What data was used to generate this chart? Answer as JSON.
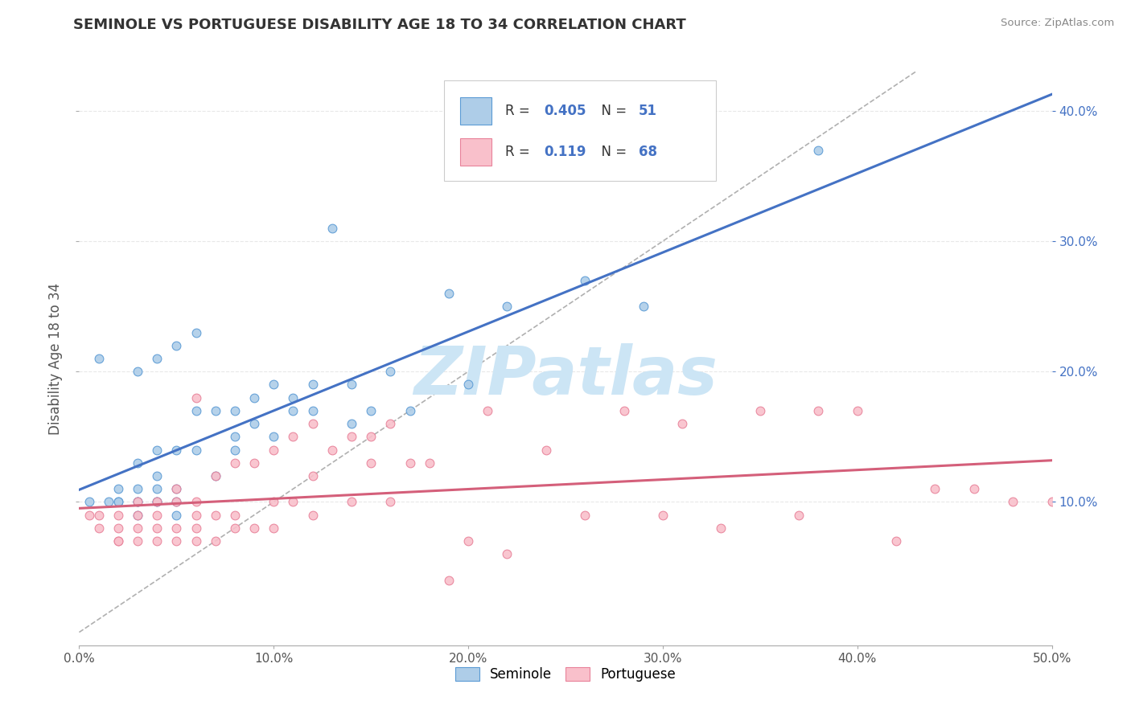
{
  "title": "SEMINOLE VS PORTUGUESE DISABILITY AGE 18 TO 34 CORRELATION CHART",
  "source": "Source: ZipAtlas.com",
  "ylabel": "Disability Age 18 to 34",
  "xlim": [
    0.0,
    0.5
  ],
  "ylim": [
    -0.01,
    0.43
  ],
  "xtick_labels": [
    "0.0%",
    "10.0%",
    "20.0%",
    "30.0%",
    "40.0%",
    "50.0%"
  ],
  "xtick_values": [
    0.0,
    0.1,
    0.2,
    0.3,
    0.4,
    0.5
  ],
  "ytick_labels_right": [
    "10.0%",
    "20.0%",
    "30.0%",
    "40.0%"
  ],
  "ytick_values_right": [
    0.1,
    0.2,
    0.3,
    0.4
  ],
  "seminole_R": 0.405,
  "seminole_N": 51,
  "portuguese_R": 0.119,
  "portuguese_N": 68,
  "seminole_color": "#aecde8",
  "portuguese_color": "#f9c0cb",
  "seminole_edge_color": "#5b9bd5",
  "portuguese_edge_color": "#e8829a",
  "seminole_line_color": "#4472c4",
  "portuguese_line_color": "#d45f7a",
  "diagonal_color": "#b0b0b0",
  "background_color": "#ffffff",
  "grid_color": "#e8e8e8",
  "watermark_text": "ZIPatlas",
  "watermark_color": "#cce5f5",
  "seminole_x": [
    0.005,
    0.01,
    0.015,
    0.02,
    0.02,
    0.02,
    0.03,
    0.03,
    0.03,
    0.03,
    0.03,
    0.03,
    0.04,
    0.04,
    0.04,
    0.04,
    0.04,
    0.04,
    0.05,
    0.05,
    0.05,
    0.05,
    0.05,
    0.06,
    0.06,
    0.06,
    0.07,
    0.07,
    0.08,
    0.08,
    0.08,
    0.09,
    0.09,
    0.1,
    0.1,
    0.11,
    0.11,
    0.12,
    0.12,
    0.13,
    0.14,
    0.14,
    0.15,
    0.16,
    0.17,
    0.19,
    0.2,
    0.22,
    0.26,
    0.29,
    0.38
  ],
  "seminole_y": [
    0.1,
    0.21,
    0.1,
    0.1,
    0.1,
    0.11,
    0.09,
    0.1,
    0.1,
    0.11,
    0.13,
    0.2,
    0.1,
    0.1,
    0.11,
    0.12,
    0.14,
    0.21,
    0.09,
    0.1,
    0.11,
    0.14,
    0.22,
    0.14,
    0.17,
    0.23,
    0.12,
    0.17,
    0.14,
    0.15,
    0.17,
    0.16,
    0.18,
    0.15,
    0.19,
    0.17,
    0.18,
    0.17,
    0.19,
    0.31,
    0.16,
    0.19,
    0.17,
    0.2,
    0.17,
    0.26,
    0.19,
    0.25,
    0.27,
    0.25,
    0.37
  ],
  "portuguese_x": [
    0.005,
    0.01,
    0.01,
    0.02,
    0.02,
    0.02,
    0.02,
    0.03,
    0.03,
    0.03,
    0.03,
    0.04,
    0.04,
    0.04,
    0.04,
    0.05,
    0.05,
    0.05,
    0.05,
    0.06,
    0.06,
    0.06,
    0.06,
    0.06,
    0.07,
    0.07,
    0.07,
    0.08,
    0.08,
    0.08,
    0.09,
    0.09,
    0.1,
    0.1,
    0.1,
    0.11,
    0.11,
    0.12,
    0.12,
    0.12,
    0.13,
    0.14,
    0.14,
    0.15,
    0.15,
    0.16,
    0.16,
    0.17,
    0.18,
    0.19,
    0.2,
    0.21,
    0.22,
    0.24,
    0.26,
    0.28,
    0.3,
    0.31,
    0.33,
    0.35,
    0.37,
    0.38,
    0.4,
    0.42,
    0.44,
    0.46,
    0.48,
    0.5
  ],
  "portuguese_y": [
    0.09,
    0.08,
    0.09,
    0.07,
    0.07,
    0.08,
    0.09,
    0.07,
    0.08,
    0.09,
    0.1,
    0.07,
    0.08,
    0.09,
    0.1,
    0.07,
    0.08,
    0.1,
    0.11,
    0.07,
    0.08,
    0.09,
    0.1,
    0.18,
    0.07,
    0.09,
    0.12,
    0.08,
    0.09,
    0.13,
    0.08,
    0.13,
    0.08,
    0.1,
    0.14,
    0.1,
    0.15,
    0.09,
    0.12,
    0.16,
    0.14,
    0.1,
    0.15,
    0.13,
    0.15,
    0.1,
    0.16,
    0.13,
    0.13,
    0.04,
    0.07,
    0.17,
    0.06,
    0.14,
    0.09,
    0.17,
    0.09,
    0.16,
    0.08,
    0.17,
    0.09,
    0.17,
    0.17,
    0.07,
    0.11,
    0.11,
    0.1,
    0.1
  ]
}
